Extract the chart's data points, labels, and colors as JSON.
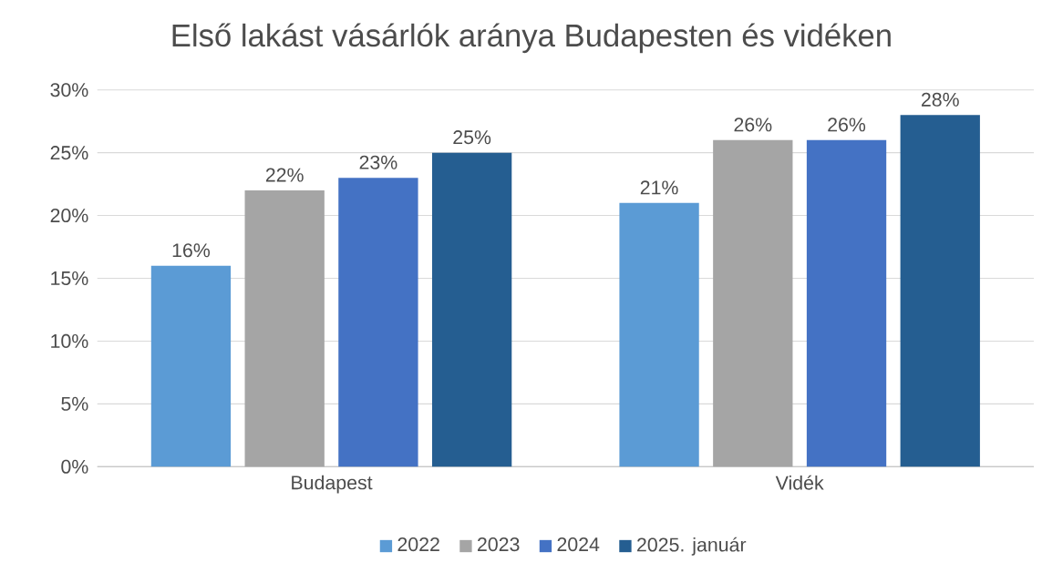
{
  "chart_data": {
    "type": "bar",
    "title": "Első lakást vásárlók aránya Budapesten és vidéken",
    "categories": [
      "Budapest",
      "Vidék"
    ],
    "series": [
      {
        "name": "2022",
        "color": "#5b9bd5",
        "values": [
          16,
          21
        ],
        "value_labels": [
          "16%",
          "21%"
        ]
      },
      {
        "name": "2023",
        "color": "#a5a5a5",
        "values": [
          22,
          26
        ],
        "value_labels": [
          "22%",
          "26%"
        ]
      },
      {
        "name": "2024",
        "color": "#4472c4",
        "values": [
          23,
          26
        ],
        "value_labels": [
          "23%",
          "26%"
        ]
      },
      {
        "name": "2025. január",
        "color": "#255e91",
        "values": [
          25,
          28
        ],
        "value_labels": [
          "25%",
          "28%"
        ]
      }
    ],
    "ylim": [
      0,
      30
    ],
    "yticks": [
      {
        "value": 0,
        "label": "0%"
      },
      {
        "value": 5,
        "label": "5%"
      },
      {
        "value": 10,
        "label": "10%"
      },
      {
        "value": 15,
        "label": "15%"
      },
      {
        "value": 20,
        "label": "20%"
      },
      {
        "value": 25,
        "label": "25%"
      },
      {
        "value": 30,
        "label": "30%"
      }
    ],
    "grid": "y",
    "legend": "bottom"
  }
}
